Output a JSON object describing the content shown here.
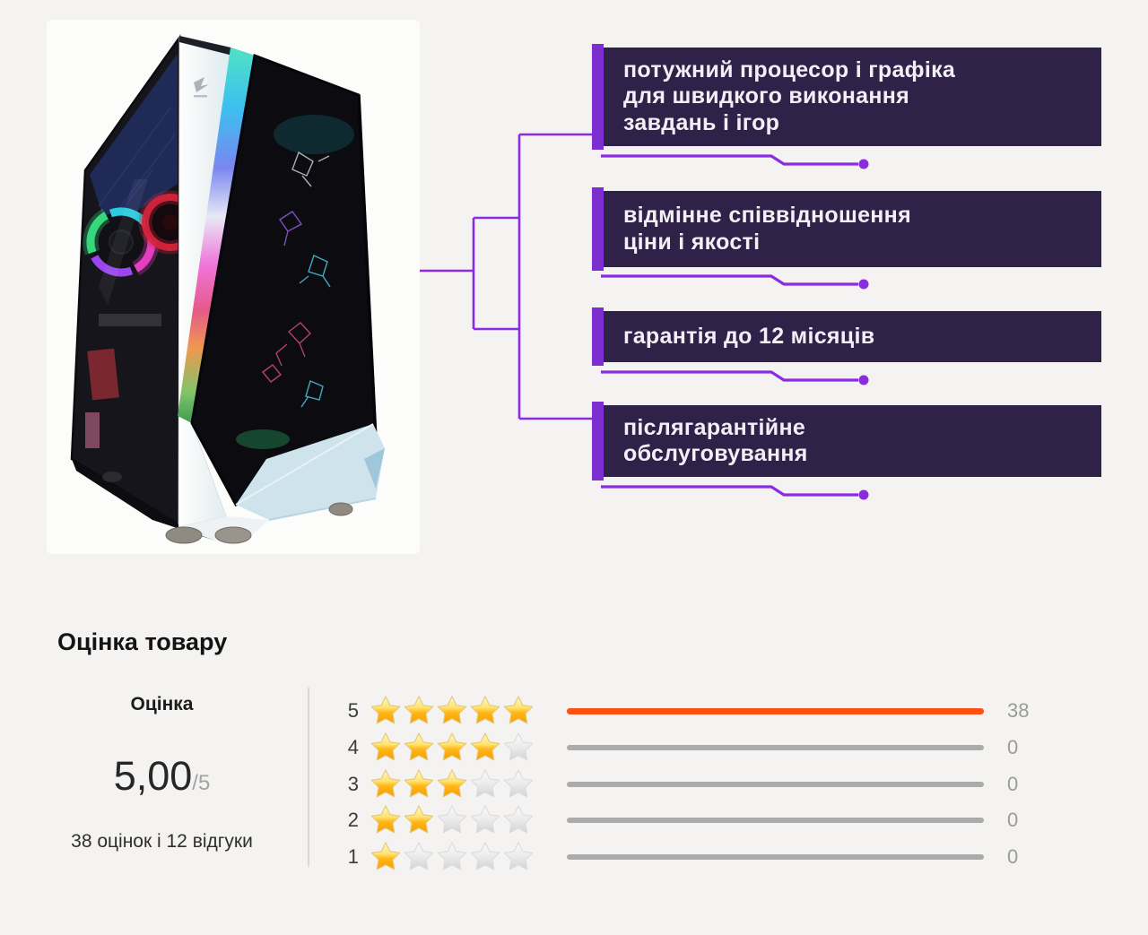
{
  "colors": {
    "bg": "#f4f3f1",
    "box-bg": "#2f2147",
    "accent": "#7d2ed1",
    "line": "#8b2be2",
    "bar-active": "#ff4f12",
    "bar-track": "#ababab",
    "count-text": "#9b9b9b",
    "divider": "#d9d9d9"
  },
  "features": {
    "items": [
      {
        "text": "потужний процесор і графіка\nдля швидкого виконання\nзавдань і ігор"
      },
      {
        "text": "відмінне співвідношення\nціни і якості"
      },
      {
        "text": "гарантія до 12 місяців"
      },
      {
        "text": "післягарантійне\nобслуговування"
      }
    ]
  },
  "rating": {
    "section_title": "Оцінка товару",
    "score_label": "Оцінка",
    "score_value": "5,00",
    "score_suffix": "/5",
    "summary": "38 оцінок і 12 відгуки",
    "rows": [
      {
        "label": "5",
        "stars": 5,
        "count": 38
      },
      {
        "label": "4",
        "stars": 4,
        "count": 0
      },
      {
        "label": "3",
        "stars": 3,
        "count": 0
      },
      {
        "label": "2",
        "stars": 2,
        "count": 0
      },
      {
        "label": "1",
        "stars": 1,
        "count": 0
      }
    ]
  }
}
